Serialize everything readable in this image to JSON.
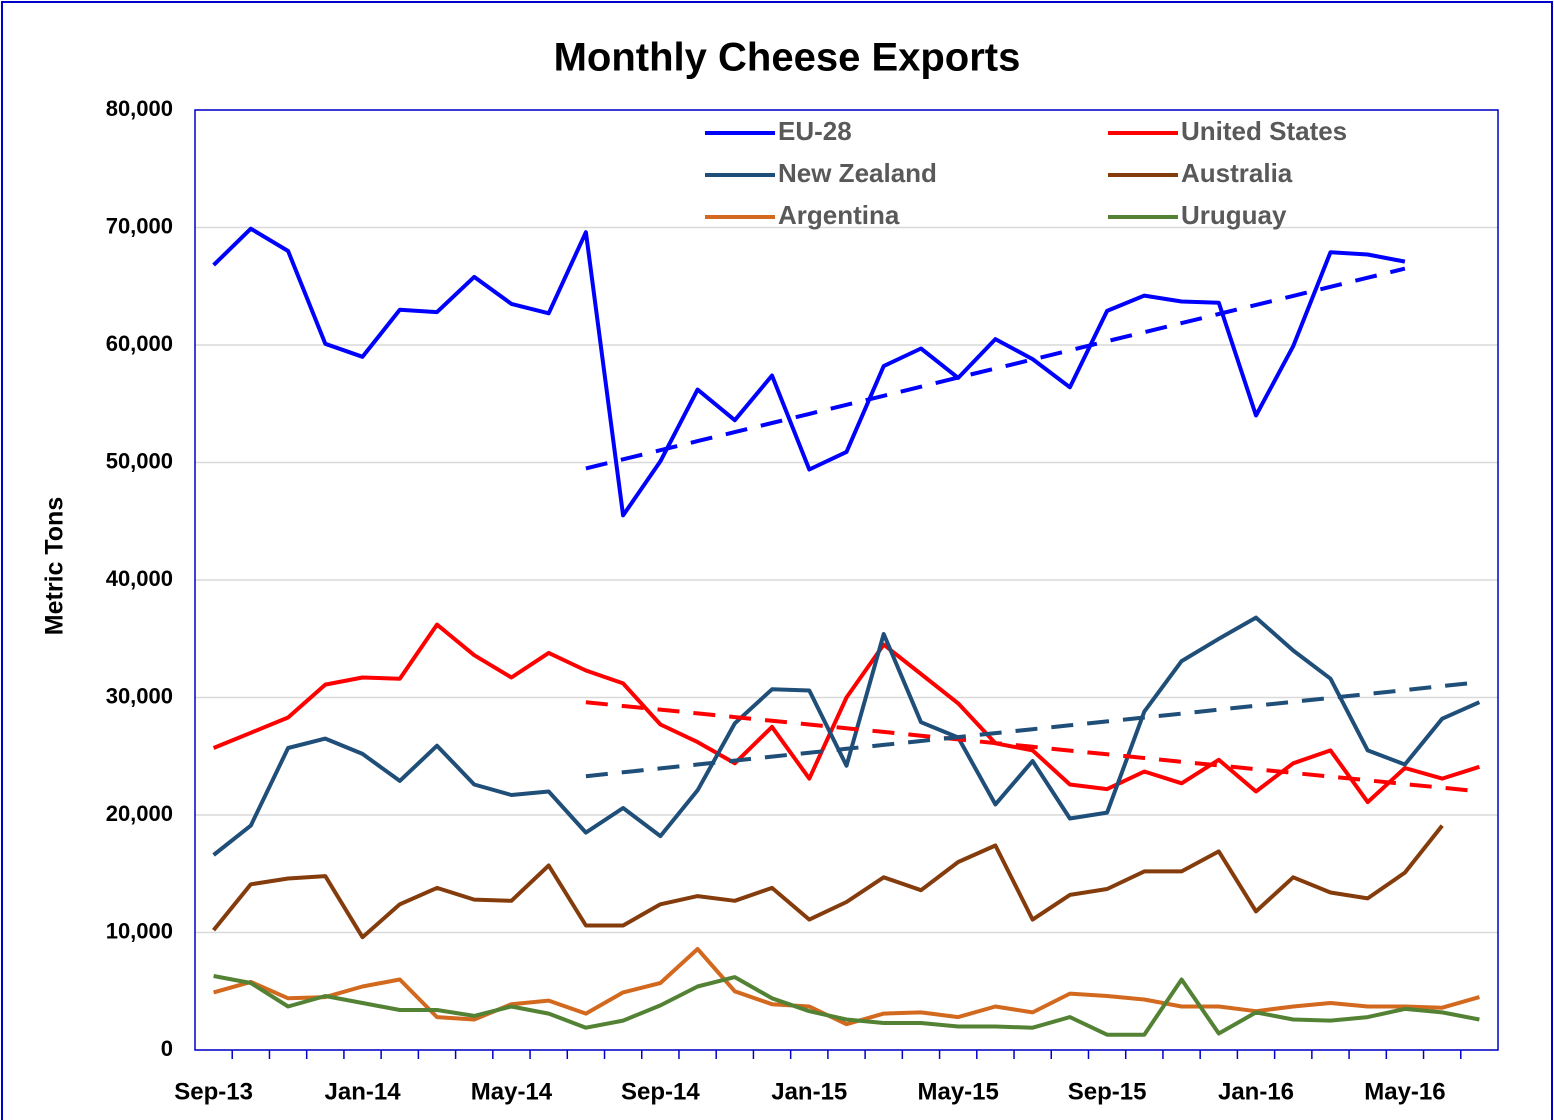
{
  "chart_data": {
    "type": "line",
    "title": "Monthly Cheese Exports",
    "y_label": "Metric Tons",
    "categories": [
      "Sep-13",
      null,
      null,
      null,
      "Jan-14",
      null,
      null,
      null,
      "May-14",
      null,
      null,
      null,
      "Sep-14",
      null,
      null,
      null,
      "Jan-15",
      null,
      null,
      null,
      "May-15",
      null,
      null,
      null,
      "Sep-15",
      null,
      null,
      null,
      "Jan-16",
      null,
      null,
      null,
      "May-16",
      null,
      null
    ],
    "ylim": [
      0,
      80000
    ],
    "yticks": [
      0,
      {
        "value": 10000,
        "label": "10,000"
      },
      {
        "value": 20000,
        "label": "20,000"
      },
      {
        "value": 30000,
        "label": "30,000"
      },
      {
        "value": 40000,
        "label": "40,000"
      },
      {
        "value": 50000,
        "label": "50,000"
      },
      {
        "value": 60000,
        "label": "60,000"
      },
      {
        "value": 70000,
        "label": "70,000"
      },
      {
        "value": 80000,
        "label": "80,000"
      }
    ],
    "grid": true,
    "legend": "top",
    "series": [
      {
        "name": "EU-28",
        "color": "#0000ff",
        "values": [
          66800,
          69900,
          68000,
          60100,
          59000,
          63000,
          62800,
          65800,
          63500,
          62700,
          69600,
          45500,
          50100,
          56200,
          53600,
          57400,
          49400,
          50900,
          58200,
          59700,
          57200,
          60500,
          58800,
          56400,
          62900,
          64200,
          63700,
          63600,
          54000,
          59900,
          67900,
          67700,
          67100,
          null,
          null
        ],
        "trend": [
          null,
          null,
          null,
          null,
          null,
          null,
          null,
          null,
          null,
          null,
          49500,
          50270,
          51050,
          51820,
          52590,
          53360,
          54140,
          54910,
          55680,
          56450,
          57230,
          58000,
          58770,
          59550,
          60320,
          61090,
          61860,
          62640,
          63410,
          64180,
          64950,
          65730,
          66500,
          null,
          null
        ]
      },
      {
        "name": "United States",
        "color": "#ff0000",
        "values": [
          25700,
          27000,
          28300,
          31100,
          31700,
          31600,
          36200,
          33600,
          31700,
          33800,
          32300,
          31200,
          27700,
          26200,
          24400,
          27500,
          23100,
          30000,
          34500,
          32000,
          29500,
          26100,
          25500,
          22600,
          22200,
          23700,
          22700,
          24700,
          22000,
          24400,
          25500,
          21100,
          24000,
          23100,
          24100
        ],
        "trend": [
          null,
          null,
          null,
          null,
          null,
          null,
          null,
          null,
          null,
          null,
          29600,
          29280,
          28970,
          28650,
          28330,
          28020,
          27700,
          27380,
          27070,
          26750,
          26430,
          26120,
          25800,
          25480,
          25170,
          24850,
          24530,
          24220,
          23900,
          23580,
          23270,
          22950,
          22630,
          22320,
          22000
        ]
      },
      {
        "name": "New Zealand",
        "color": "#1f4e79",
        "values": [
          16600,
          19100,
          25700,
          26500,
          25200,
          22900,
          25900,
          22600,
          21700,
          22000,
          18500,
          20600,
          18200,
          22100,
          27800,
          30700,
          30600,
          24200,
          35400,
          27900,
          26600,
          20900,
          24600,
          19700,
          20200,
          28800,
          33100,
          35000,
          36800,
          34000,
          31600,
          25500,
          24300,
          28200,
          29600
        ],
        "trend": [
          null,
          null,
          null,
          null,
          null,
          null,
          null,
          null,
          null,
          null,
          23300,
          23630,
          23970,
          24300,
          24630,
          24970,
          25300,
          25630,
          25970,
          26300,
          26630,
          26970,
          27300,
          27630,
          27970,
          28300,
          28630,
          28970,
          29300,
          29630,
          29970,
          30300,
          30630,
          30970,
          31300
        ]
      },
      {
        "name": "Australia",
        "color": "#843c0c",
        "values": [
          10200,
          14100,
          14600,
          14800,
          9600,
          12400,
          13800,
          12800,
          12700,
          15700,
          10600,
          10600,
          12400,
          13100,
          12700,
          13800,
          11100,
          12600,
          14700,
          13600,
          16000,
          17400,
          11100,
          13200,
          13700,
          15200,
          15200,
          16900,
          11800,
          14700,
          13400,
          12900,
          15100,
          19100,
          null
        ]
      },
      {
        "name": "Argentina",
        "color": "#d2691e",
        "values": [
          4900,
          5800,
          4400,
          4500,
          5400,
          6000,
          2800,
          2600,
          3900,
          4200,
          3100,
          4900,
          5700,
          8600,
          5000,
          3900,
          3700,
          2200,
          3100,
          3200,
          2800,
          3700,
          3200,
          4800,
          4600,
          4300,
          3700,
          3700,
          3300,
          3700,
          4000,
          3700,
          3700,
          3600,
          4500
        ]
      },
      {
        "name": "Uruguay",
        "color": "#548235",
        "values": [
          6300,
          5700,
          3700,
          4600,
          4000,
          3400,
          3400,
          2900,
          3700,
          3100,
          1900,
          2500,
          3800,
          5400,
          6200,
          4400,
          3300,
          2600,
          2300,
          2300,
          2000,
          2000,
          1900,
          2800,
          1300,
          1300,
          6000,
          1400,
          3200,
          2600,
          2500,
          2800,
          3500,
          3200,
          2600
        ]
      }
    ]
  }
}
